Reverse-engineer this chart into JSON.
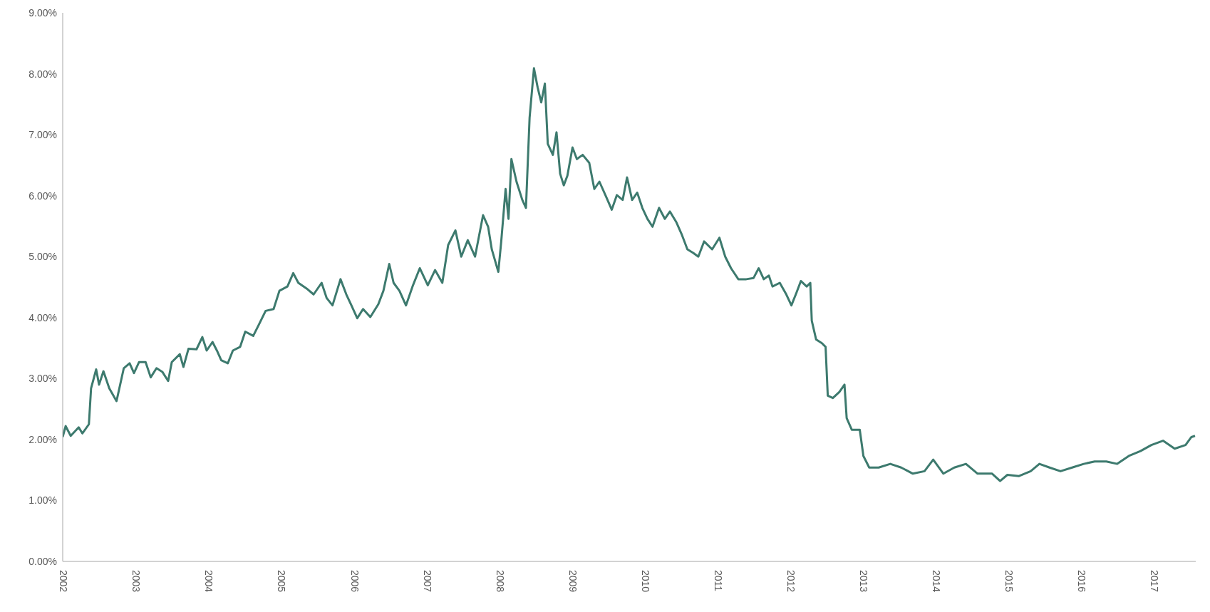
{
  "chart_data": {
    "type": "line",
    "x": [
      2002.0,
      2002.04,
      2002.11,
      2002.22,
      2002.27,
      2002.36,
      2002.39,
      2002.46,
      2002.5,
      2002.56,
      2002.64,
      2002.74,
      2002.79,
      2002.84,
      2002.92,
      2002.98,
      2003.05,
      2003.14,
      2003.21,
      2003.29,
      2003.37,
      2003.45,
      2003.5,
      2003.61,
      2003.66,
      2003.73,
      2003.84,
      2003.92,
      2003.98,
      2004.06,
      2004.12,
      2004.18,
      2004.27,
      2004.34,
      2004.44,
      2004.51,
      2004.62,
      2004.7,
      2004.79,
      2004.9,
      2004.98,
      2005.09,
      2005.17,
      2005.24,
      2005.35,
      2005.45,
      2005.56,
      2005.63,
      2005.71,
      2005.82,
      2005.9,
      2005.97,
      2006.05,
      2006.13,
      2006.23,
      2006.34,
      2006.41,
      2006.49,
      2006.55,
      2006.63,
      2006.72,
      2006.81,
      2006.91,
      2007.02,
      2007.12,
      2007.22,
      2007.3,
      2007.4,
      2007.48,
      2007.57,
      2007.67,
      2007.78,
      2007.85,
      2007.9,
      2007.99,
      2008.03,
      2008.09,
      2008.13,
      2008.17,
      2008.24,
      2008.32,
      2008.37,
      2008.42,
      2008.48,
      2008.53,
      2008.58,
      2008.63,
      2008.67,
      2008.74,
      2008.79,
      2008.84,
      2008.89,
      2008.94,
      2009.01,
      2009.07,
      2009.15,
      2009.24,
      2009.31,
      2009.38,
      2009.47,
      2009.55,
      2009.62,
      2009.7,
      2009.76,
      2009.83,
      2009.9,
      2009.97,
      2010.04,
      2010.11,
      2010.2,
      2010.28,
      2010.35,
      2010.44,
      2010.51,
      2010.59,
      2010.67,
      2010.74,
      2010.82,
      2010.93,
      2011.03,
      2011.11,
      2011.19,
      2011.29,
      2011.4,
      2011.5,
      2011.57,
      2011.64,
      2011.71,
      2011.76,
      2011.86,
      2011.95,
      2012.02,
      2012.09,
      2012.15,
      2012.23,
      2012.28,
      2012.3,
      2012.36,
      2012.44,
      2012.49,
      2012.52,
      2012.59,
      2012.68,
      2012.75,
      2012.78,
      2012.85,
      2012.96,
      2013.01,
      2013.09,
      2013.22,
      2013.38,
      2013.53,
      2013.69,
      2013.85,
      2013.97,
      2014.11,
      2014.26,
      2014.42,
      2014.58,
      2014.78,
      2014.89,
      2014.99,
      2015.15,
      2015.31,
      2015.43,
      2015.57,
      2015.72,
      2015.88,
      2016.04,
      2016.19,
      2016.35,
      2016.5,
      2016.66,
      2016.82,
      2016.97,
      2017.13,
      2017.29,
      2017.44,
      2017.52,
      2017.57
    ],
    "series": [
      {
        "color": "#3d7a6e",
        "values": [
          2.04,
          2.22,
          2.06,
          2.2,
          2.1,
          2.25,
          2.84,
          3.15,
          2.9,
          3.12,
          2.84,
          2.63,
          2.9,
          3.17,
          3.25,
          3.09,
          3.27,
          3.27,
          3.02,
          3.17,
          3.11,
          2.96,
          3.27,
          3.4,
          3.19,
          3.49,
          3.48,
          3.68,
          3.46,
          3.6,
          3.46,
          3.3,
          3.25,
          3.46,
          3.52,
          3.77,
          3.7,
          3.89,
          4.11,
          4.14,
          4.44,
          4.51,
          4.73,
          4.57,
          4.48,
          4.38,
          4.57,
          4.32,
          4.2,
          4.63,
          4.38,
          4.2,
          3.99,
          4.14,
          4.01,
          4.22,
          4.44,
          4.88,
          4.57,
          4.44,
          4.2,
          4.51,
          4.81,
          4.53,
          4.78,
          4.57,
          5.19,
          5.43,
          5.0,
          5.27,
          5.0,
          5.68,
          5.49,
          5.12,
          4.75,
          5.25,
          6.11,
          5.62,
          6.6,
          6.23,
          5.93,
          5.8,
          7.28,
          8.09,
          7.78,
          7.53,
          7.84,
          6.85,
          6.67,
          7.04,
          6.36,
          6.17,
          6.33,
          6.79,
          6.6,
          6.67,
          6.54,
          6.11,
          6.23,
          5.99,
          5.77,
          6.01,
          5.93,
          6.3,
          5.93,
          6.05,
          5.8,
          5.62,
          5.49,
          5.8,
          5.62,
          5.74,
          5.56,
          5.37,
          5.12,
          5.06,
          5.0,
          5.25,
          5.12,
          5.31,
          5.0,
          4.81,
          4.63,
          4.63,
          4.65,
          4.81,
          4.63,
          4.69,
          4.51,
          4.57,
          4.38,
          4.2,
          4.41,
          4.6,
          4.51,
          4.57,
          3.95,
          3.64,
          3.58,
          3.52,
          2.72,
          2.68,
          2.78,
          2.9,
          2.35,
          2.16,
          2.16,
          1.73,
          1.54,
          1.54,
          1.6,
          1.54,
          1.44,
          1.48,
          1.67,
          1.44,
          1.54,
          1.6,
          1.44,
          1.44,
          1.32,
          1.42,
          1.4,
          1.48,
          1.6,
          1.54,
          1.48,
          1.54,
          1.6,
          1.64,
          1.64,
          1.6,
          1.73,
          1.81,
          1.91,
          1.98,
          1.85,
          1.91,
          2.04,
          2.06
        ]
      }
    ],
    "xlim": [
      2002,
      2017.58
    ],
    "xticks": [
      2002,
      2003,
      2004,
      2005,
      2006,
      2007,
      2008,
      2009,
      2010,
      2011,
      2012,
      2013,
      2014,
      2015,
      2016,
      2017
    ],
    "ylim": [
      0,
      9
    ],
    "yticks": [
      {
        "value": 0,
        "label": "0.00%"
      },
      {
        "value": 1,
        "label": "1.00%"
      },
      {
        "value": 2,
        "label": "2.00%"
      },
      {
        "value": 3,
        "label": "3.00%"
      },
      {
        "value": 4,
        "label": "4.00%"
      },
      {
        "value": 5,
        "label": "5.00%"
      },
      {
        "value": 6,
        "label": "6.00%"
      },
      {
        "value": 7,
        "label": "7.00%"
      },
      {
        "value": 8,
        "label": "8.00%"
      },
      {
        "value": 9,
        "label": "9.00%"
      }
    ]
  }
}
